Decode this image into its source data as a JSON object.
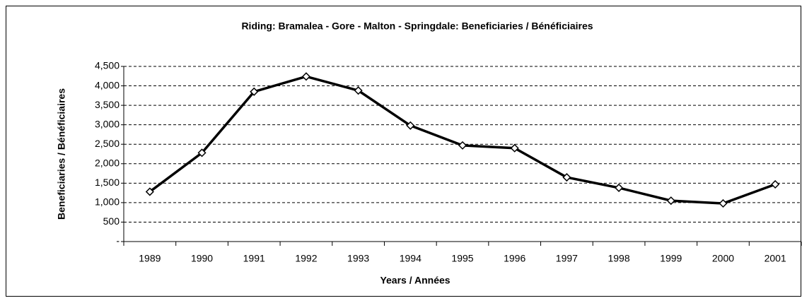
{
  "chart_data": {
    "type": "line",
    "title": "Riding:  Bramalea - Gore - Malton - Springdale:  Beneficiaries / Bénéficiaires",
    "x_label": "Years / Années",
    "y_label": "Beneficiaries / Bénéficiaires",
    "categories": [
      "1989",
      "1990",
      "1991",
      "1992",
      "1993",
      "1994",
      "1995",
      "1996",
      "1997",
      "1998",
      "1999",
      "2000",
      "2001"
    ],
    "series": [
      {
        "name": "Beneficiaries",
        "color": "#000000",
        "values": [
          1280,
          2280,
          3850,
          4240,
          3880,
          2980,
          2470,
          2400,
          1650,
          1380,
          1050,
          980,
          1470
        ]
      }
    ],
    "ylim": [
      0,
      4500
    ],
    "yticks": [
      {
        "value": 0,
        "label": "-"
      },
      500,
      {
        "value": 1000,
        "label": "1,000"
      },
      {
        "value": 1500,
        "label": "1,500"
      },
      {
        "value": 2000,
        "label": "2,000"
      },
      {
        "value": 2500,
        "label": "2,500"
      },
      {
        "value": 3000,
        "label": "3,000"
      },
      {
        "value": 3500,
        "label": "3,500"
      },
      {
        "value": 4000,
        "label": "4,000"
      },
      {
        "value": 4500,
        "label": "4,500"
      }
    ],
    "grid": true
  }
}
